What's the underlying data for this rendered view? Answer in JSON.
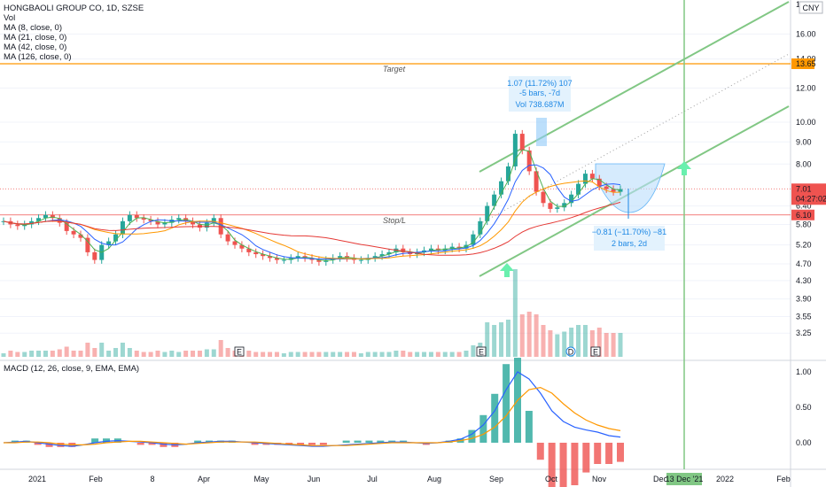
{
  "header": {
    "title": "HONGBAOLI GROUP CO, 1D, SZSE",
    "indicators": [
      "Vol",
      "MA (8, close, 0)",
      "MA (21, close, 0)",
      "MA (42, close, 0)",
      "MA (126, close, 0)"
    ],
    "macd_label": "MACD (12, 26, close, 9, EMA, EMA)",
    "currency": "CNY"
  },
  "colors": {
    "up": "#26a69a",
    "down": "#ef5350",
    "ma8": "#4caf50",
    "ma21": "#2962ff",
    "ma42": "#ff9800",
    "ma126": "#e53935",
    "channel": "#81c784",
    "target": "#ff9800",
    "stop": "#ef5350",
    "vline": "#81c784",
    "macd": "#2962ff",
    "signal": "#ff9800"
  },
  "chart_data": {
    "type": "line",
    "x_labels": [
      "2021",
      "Feb",
      "8",
      "Apr",
      "May",
      "Jun",
      "Jul",
      "Aug",
      "Sep",
      "Oct",
      "Nov",
      "Dec",
      "2022",
      "Feb"
    ],
    "price_axis": [
      16.0,
      14.0,
      12.0,
      10.0,
      9.0,
      8.0,
      6.4,
      5.8,
      5.2,
      4.7,
      4.3,
      3.9,
      3.55,
      3.25
    ],
    "price_axis_top_partial": "18.00",
    "price_axis_log": true,
    "macd_axis": [
      1.0,
      0.5,
      0.0
    ],
    "close_series": [
      5.9,
      5.8,
      5.75,
      5.8,
      5.9,
      6.0,
      6.1,
      6.0,
      5.85,
      5.6,
      5.5,
      5.4,
      5.0,
      4.8,
      5.2,
      5.3,
      5.5,
      5.9,
      6.1,
      6.0,
      5.95,
      5.9,
      5.8,
      5.85,
      5.95,
      6.0,
      5.9,
      5.8,
      5.7,
      5.85,
      6.0,
      5.5,
      5.3,
      5.2,
      5.1,
      5.0,
      4.95,
      4.9,
      4.85,
      4.8,
      4.8,
      4.85,
      4.9,
      4.85,
      4.8,
      4.75,
      4.8,
      4.85,
      4.9,
      4.85,
      4.8,
      4.8,
      4.85,
      4.9,
      4.95,
      5.0,
      5.1,
      5.0,
      4.95,
      5.0,
      5.05,
      5.1,
      5.05,
      5.1,
      5.15,
      5.1,
      5.2,
      5.5,
      5.9,
      6.4,
      6.8,
      7.3,
      7.9,
      9.4,
      8.6,
      7.7,
      6.9,
      6.5,
      6.3,
      6.35,
      6.5,
      6.8,
      7.2,
      7.6,
      7.4,
      7.1,
      7.0,
      6.9,
      7.0
    ],
    "target": {
      "value": 13.65,
      "label": "Target"
    },
    "stop": {
      "value": 6.1,
      "label": "Stop/L"
    },
    "last_price": {
      "value": "7.01",
      "countdown": "04:27:02"
    },
    "measure_up": {
      "line1": "1.07 (11.72%) 107",
      "line2": "-5 bars, -7d",
      "line3": "Vol 738.687M"
    },
    "measure_down": {
      "line1": "−0.81 (−11.70%) −81",
      "line2": "2 bars, 2d"
    },
    "vline_date": "13 Dec '21",
    "earnings_markers": [
      "E",
      "E",
      "D",
      "E"
    ],
    "macd": [
      0.0,
      0.01,
      0.02,
      0.0,
      -0.02,
      -0.04,
      -0.05,
      -0.03,
      0.0,
      0.02,
      0.03,
      0.02,
      0.01,
      0.0,
      -0.02,
      -0.03,
      -0.02,
      0.0,
      0.01,
      0.02,
      0.02,
      0.01,
      0.0,
      -0.01,
      -0.02,
      -0.03,
      -0.04,
      -0.05,
      -0.05,
      -0.04,
      -0.03,
      -0.02,
      -0.01,
      0.0,
      0.01,
      0.01,
      0.0,
      -0.01,
      0.0,
      0.02,
      0.05,
      0.12,
      0.25,
      0.45,
      0.75,
      1.0,
      0.9,
      0.7,
      0.45,
      0.3,
      0.22,
      0.18,
      0.15,
      0.1,
      0.08
    ],
    "signal": [
      0.0,
      0.0,
      0.01,
      0.01,
      0.0,
      -0.02,
      -0.03,
      -0.03,
      -0.02,
      0.0,
      0.01,
      0.02,
      0.02,
      0.01,
      0.0,
      -0.01,
      -0.02,
      -0.01,
      0.0,
      0.01,
      0.01,
      0.01,
      0.01,
      0.0,
      -0.01,
      -0.02,
      -0.03,
      -0.04,
      -0.04,
      -0.04,
      -0.04,
      -0.03,
      -0.02,
      -0.01,
      0.0,
      0.0,
      0.0,
      0.0,
      0.0,
      0.01,
      0.03,
      0.06,
      0.12,
      0.22,
      0.38,
      0.6,
      0.75,
      0.78,
      0.7,
      0.55,
      0.42,
      0.32,
      0.25,
      0.2,
      0.17
    ]
  }
}
